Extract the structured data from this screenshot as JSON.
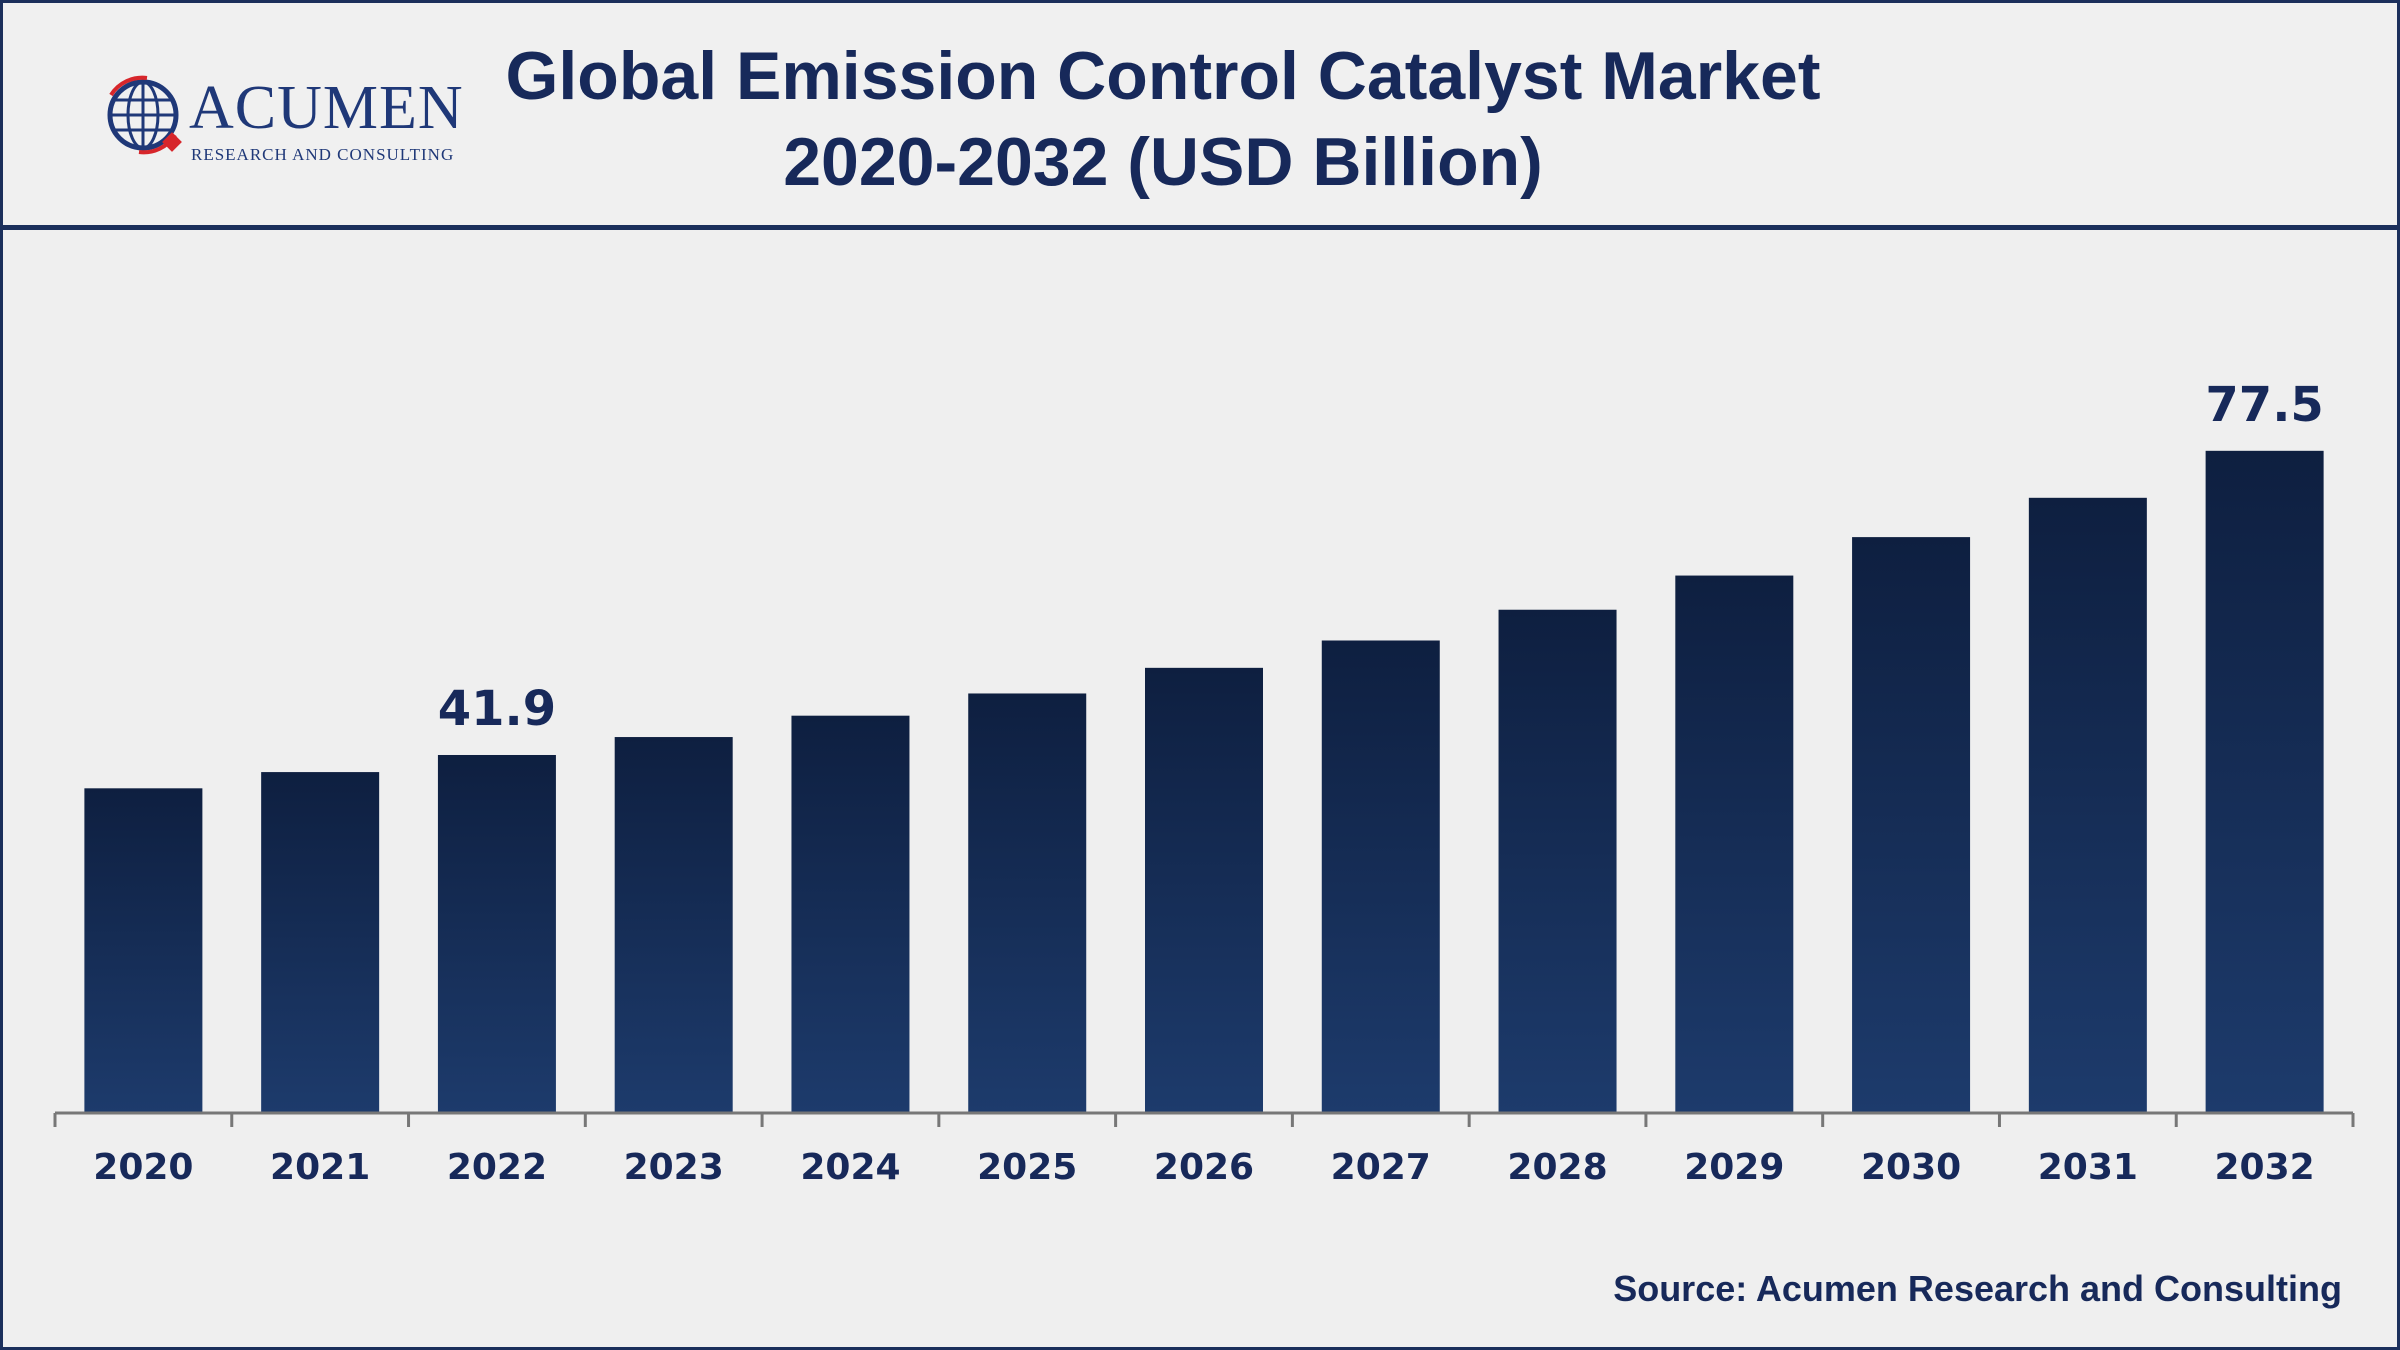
{
  "header": {
    "logo_word": "ACUMEN",
    "logo_sub": "RESEARCH AND CONSULTING",
    "title_line1": "Global Emission Control Catalyst Market",
    "title_line2": "2020-2032 (USD Billion)"
  },
  "source": "Source: Acumen Research and Consulting",
  "colors": {
    "bar_top": "#0e1f40",
    "bar_bottom": "#1d3b6c",
    "text": "#17295a",
    "axis": "#777777"
  },
  "chart_data": {
    "type": "bar",
    "title": "Global Emission Control Catalyst Market 2020-2032 (USD Billion)",
    "xlabel": "",
    "ylabel": "",
    "grid": false,
    "legend": "none",
    "categories": [
      "2020",
      "2021",
      "2022",
      "2023",
      "2024",
      "2025",
      "2026",
      "2027",
      "2028",
      "2029",
      "2030",
      "2031",
      "2032"
    ],
    "values": [
      38.0,
      39.9,
      41.9,
      44.0,
      46.5,
      49.1,
      52.1,
      55.3,
      58.9,
      62.9,
      67.4,
      72.0,
      77.5
    ],
    "data_labels": [
      {
        "category": "2022",
        "text": "41.9"
      },
      {
        "category": "2032",
        "text": "77.5"
      }
    ],
    "ylim": [
      0,
      80
    ]
  }
}
